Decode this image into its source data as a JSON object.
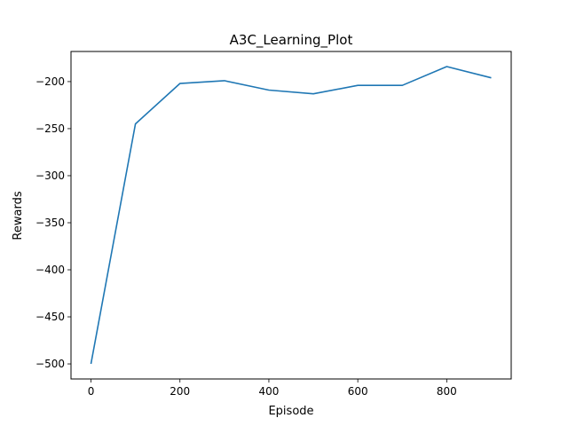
{
  "chart_data": {
    "type": "line",
    "title": "A3C_Learning_Plot",
    "xlabel": "Episode",
    "ylabel": "Rewards",
    "x": [
      0,
      100,
      200,
      300,
      400,
      500,
      600,
      700,
      800,
      900
    ],
    "series": [
      {
        "values": [
          -500,
          -245,
          -202,
          -199,
          -209,
          -213,
          -204,
          -204,
          -184,
          -196
        ],
        "color": "#1f77b4"
      }
    ],
    "xlim": [
      -45,
      945
    ],
    "ylim": [
      -516,
      -168
    ],
    "xticks": [
      0,
      200,
      400,
      600,
      800
    ],
    "yticks": [
      -500,
      -450,
      -400,
      -350,
      -300,
      -250,
      -200
    ],
    "grid": false,
    "legend": "none"
  }
}
